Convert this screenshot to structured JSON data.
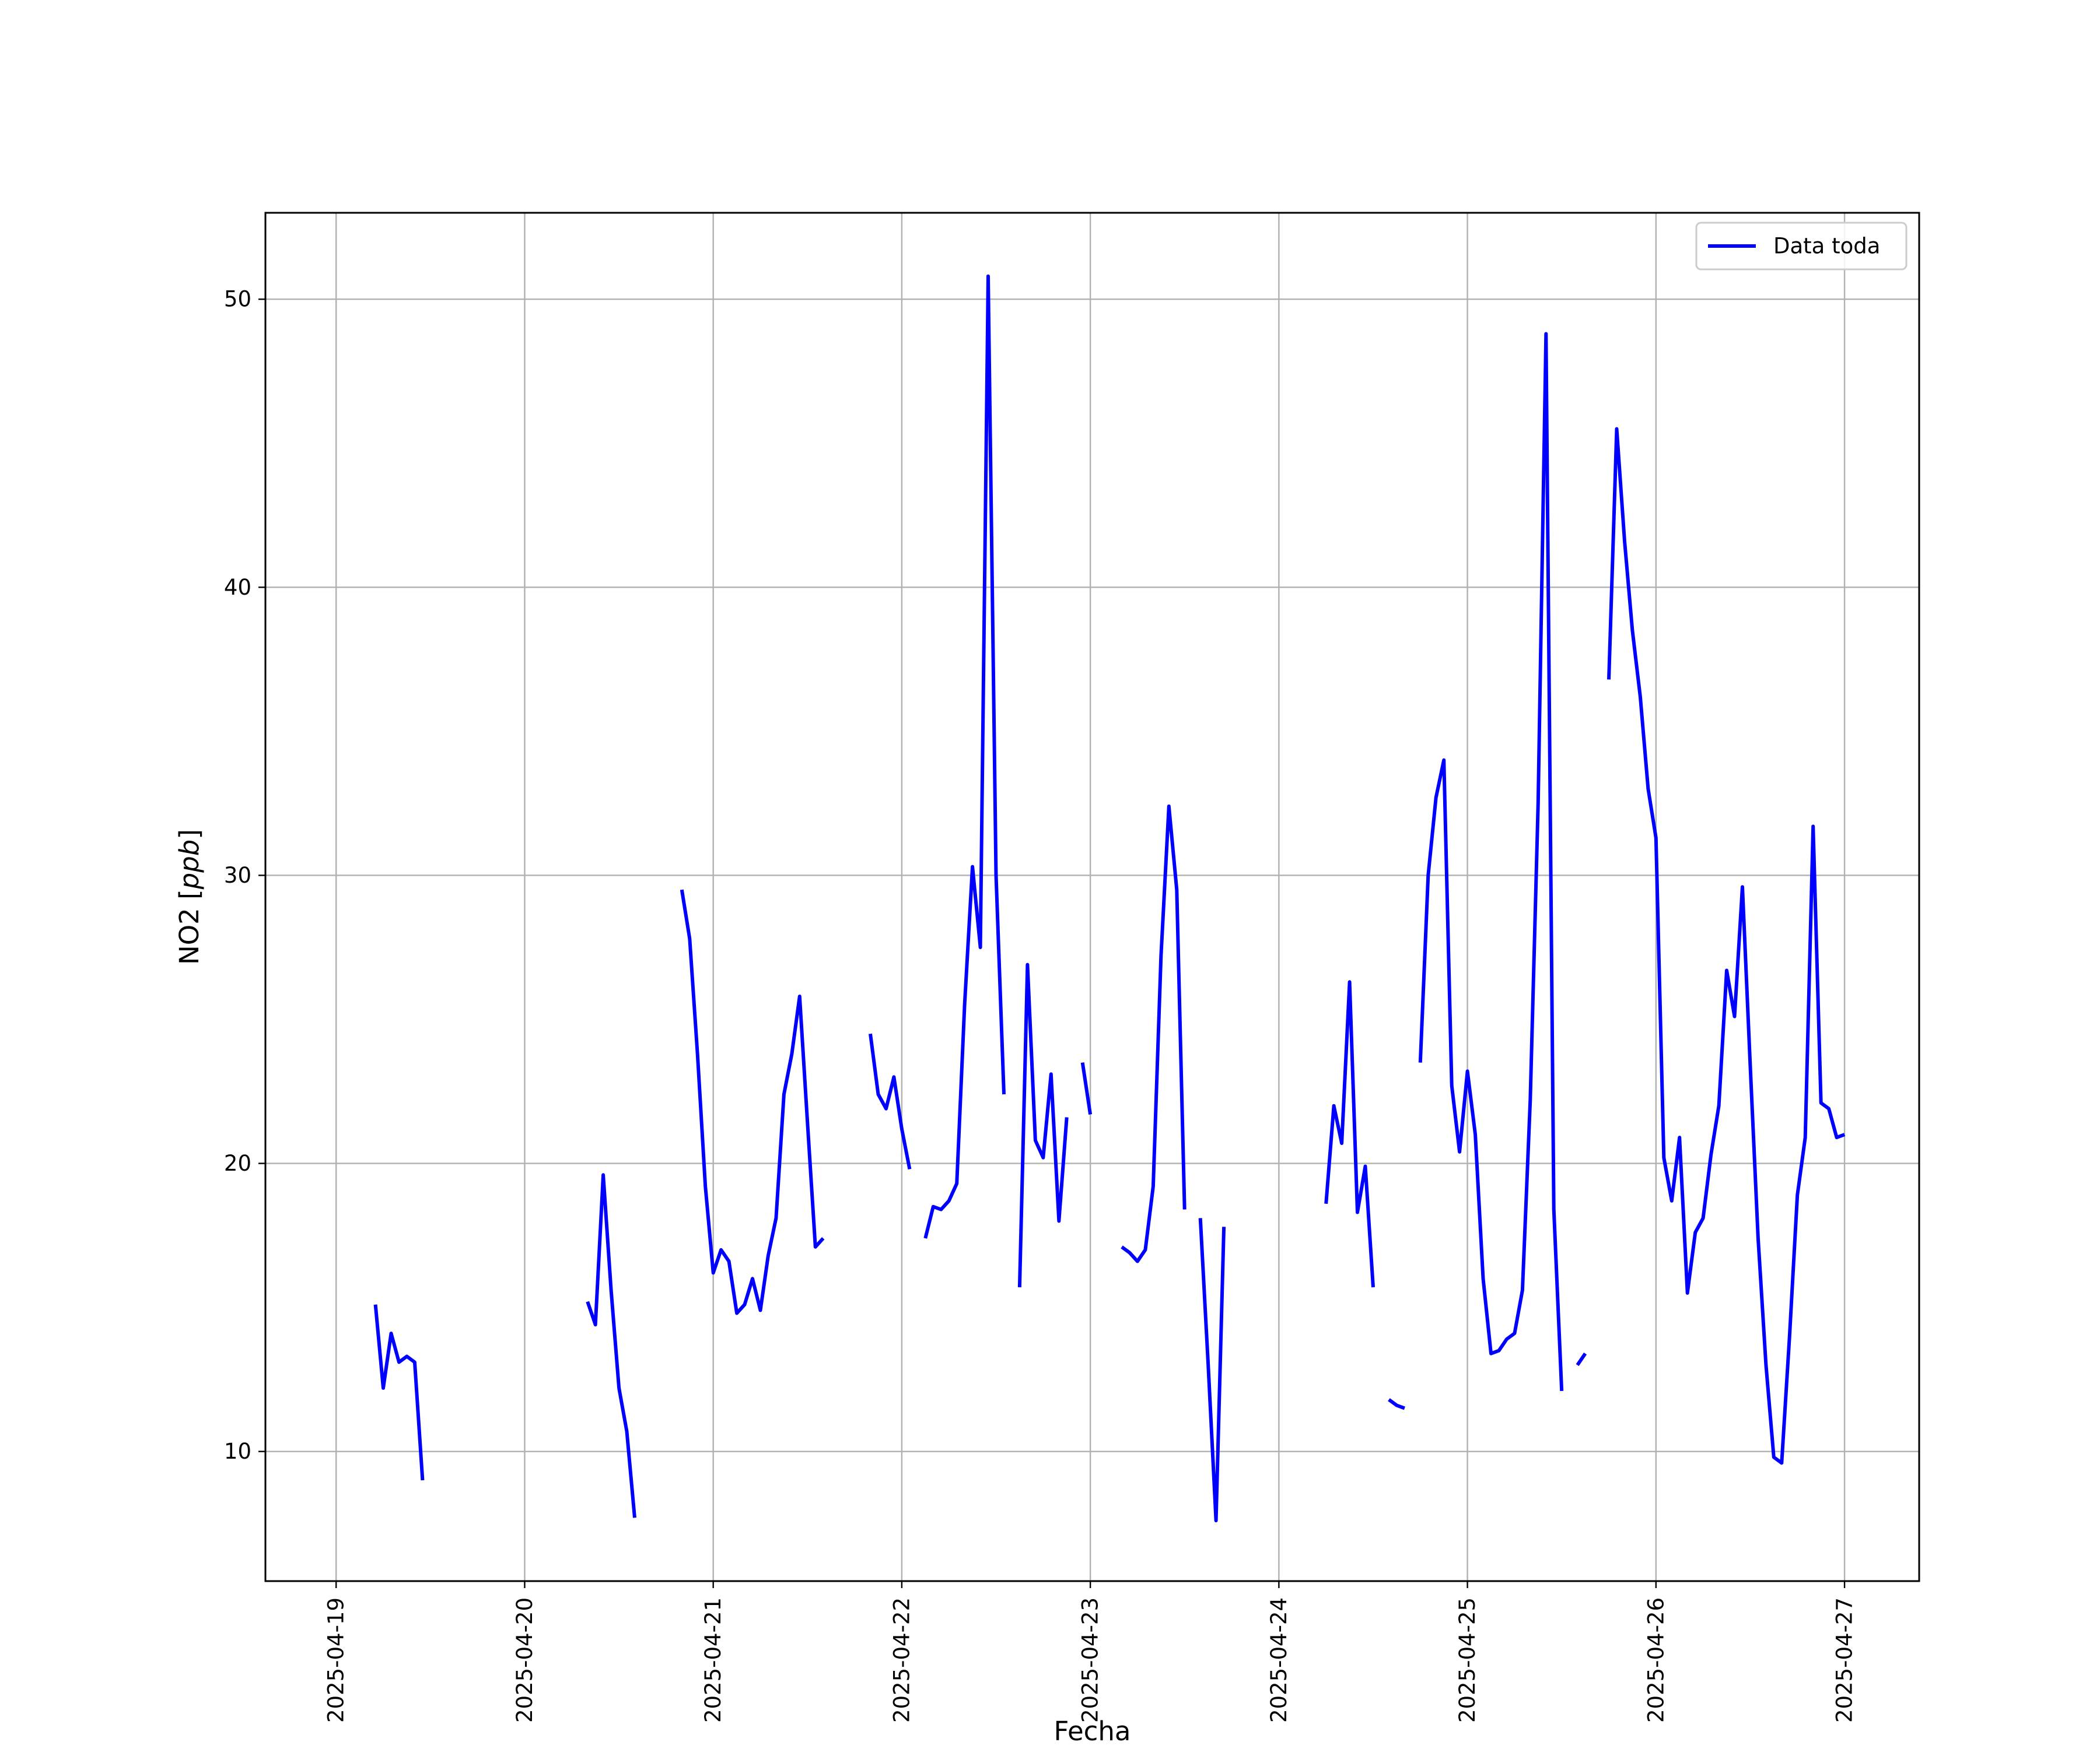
{
  "chart_data": {
    "type": "line",
    "title": "",
    "xlabel": "Fecha",
    "ylabel_prefix": "NO2 [",
    "ylabel_unit": "ppb",
    "ylabel_suffix": "]",
    "x_type": "date",
    "xlim": [
      "2025-04-18T15:00",
      "2025-04-27T09:30"
    ],
    "ylim": [
      5.5,
      53
    ],
    "x_ticks": [
      "2025-04-19",
      "2025-04-20",
      "2025-04-21",
      "2025-04-22",
      "2025-04-23",
      "2025-04-24",
      "2025-04-25",
      "2025-04-26",
      "2025-04-27"
    ],
    "y_ticks": [
      "10",
      "20",
      "30",
      "40",
      "50"
    ],
    "grid": true,
    "legend_position": "top-right",
    "line_color": "#0000ff",
    "series": [
      {
        "name": "Data toda",
        "segments": [
          [
            [
              "2025-04-19T05:00",
              15.1
            ],
            [
              "2025-04-19T06:00",
              12.2
            ],
            [
              "2025-04-19T07:00",
              14.1
            ],
            [
              "2025-04-19T08:00",
              13.1
            ],
            [
              "2025-04-19T09:00",
              13.3
            ],
            [
              "2025-04-19T10:00",
              13.1
            ],
            [
              "2025-04-19T11:00",
              9.0
            ]
          ],
          [
            [
              "2025-04-20T08:00",
              15.2
            ],
            [
              "2025-04-20T09:00",
              14.4
            ],
            [
              "2025-04-20T10:00",
              19.6
            ],
            [
              "2025-04-20T11:00",
              15.6
            ],
            [
              "2025-04-20T12:00",
              12.2
            ],
            [
              "2025-04-20T13:00",
              10.7
            ],
            [
              "2025-04-20T14:00",
              7.7
            ]
          ],
          [
            [
              "2025-04-20T20:00",
              29.5
            ],
            [
              "2025-04-20T21:00",
              27.8
            ],
            [
              "2025-04-20T22:00",
              23.8
            ],
            [
              "2025-04-20T23:00",
              19.2
            ],
            [
              "2025-04-21T00:00",
              16.2
            ],
            [
              "2025-04-21T01:00",
              17.0
            ],
            [
              "2025-04-21T02:00",
              16.6
            ],
            [
              "2025-04-21T03:00",
              14.8
            ],
            [
              "2025-04-21T04:00",
              15.1
            ],
            [
              "2025-04-21T05:00",
              16.0
            ],
            [
              "2025-04-21T06:00",
              14.9
            ],
            [
              "2025-04-21T07:00",
              16.8
            ],
            [
              "2025-04-21T08:00",
              18.1
            ],
            [
              "2025-04-21T09:00",
              22.4
            ],
            [
              "2025-04-21T10:00",
              23.8
            ],
            [
              "2025-04-21T11:00",
              25.8
            ],
            [
              "2025-04-21T12:00",
              21.4
            ],
            [
              "2025-04-21T13:00",
              17.1
            ],
            [
              "2025-04-21T14:00",
              17.4
            ]
          ],
          [
            [
              "2025-04-21T20:00",
              24.5
            ],
            [
              "2025-04-21T21:00",
              22.4
            ],
            [
              "2025-04-21T22:00",
              21.9
            ],
            [
              "2025-04-21T23:00",
              23.0
            ],
            [
              "2025-04-22T00:00",
              21.2
            ],
            [
              "2025-04-22T01:00",
              19.8
            ]
          ],
          [
            [
              "2025-04-22T03:00",
              17.4
            ],
            [
              "2025-04-22T04:00",
              18.5
            ],
            [
              "2025-04-22T05:00",
              18.4
            ],
            [
              "2025-04-22T06:00",
              18.7
            ],
            [
              "2025-04-22T07:00",
              19.3
            ],
            [
              "2025-04-22T08:00",
              25.5
            ],
            [
              "2025-04-22T09:00",
              30.3
            ],
            [
              "2025-04-22T10:00",
              27.5
            ],
            [
              "2025-04-22T11:00",
              50.8
            ],
            [
              "2025-04-22T12:00",
              30.0
            ],
            [
              "2025-04-22T13:00",
              22.4
            ]
          ],
          [
            [
              "2025-04-22T15:00",
              15.7
            ],
            [
              "2025-04-22T16:00",
              26.9
            ],
            [
              "2025-04-22T17:00",
              20.8
            ],
            [
              "2025-04-22T18:00",
              20.2
            ],
            [
              "2025-04-22T19:00",
              23.1
            ],
            [
              "2025-04-22T20:00",
              18.0
            ],
            [
              "2025-04-22T21:00",
              21.6
            ]
          ],
          [
            [
              "2025-04-22T23:00",
              23.5
            ],
            [
              "2025-04-23T00:00",
              21.7
            ]
          ],
          [
            [
              "2025-04-23T04:00",
              17.1
            ],
            [
              "2025-04-23T05:00",
              16.9
            ],
            [
              "2025-04-23T06:00",
              16.6
            ],
            [
              "2025-04-23T07:00",
              17.0
            ],
            [
              "2025-04-23T08:00",
              19.2
            ],
            [
              "2025-04-23T09:00",
              27.2
            ],
            [
              "2025-04-23T10:00",
              32.4
            ],
            [
              "2025-04-23T11:00",
              29.5
            ],
            [
              "2025-04-23T12:00",
              18.4
            ]
          ],
          [
            [
              "2025-04-23T14:00",
              18.1
            ],
            [
              "2025-04-23T15:00",
              13.0
            ],
            [
              "2025-04-23T16:00",
              7.6
            ],
            [
              "2025-04-23T17:00",
              17.8
            ]
          ],
          [
            [
              "2025-04-24T06:00",
              18.6
            ],
            [
              "2025-04-24T07:00",
              22.0
            ],
            [
              "2025-04-24T08:00",
              20.7
            ],
            [
              "2025-04-24T09:00",
              26.3
            ],
            [
              "2025-04-24T10:00",
              18.3
            ],
            [
              "2025-04-24T11:00",
              19.9
            ],
            [
              "2025-04-24T12:00",
              15.7
            ]
          ],
          [
            [
              "2025-04-24T14:00",
              11.8
            ],
            [
              "2025-04-24T15:00",
              11.6
            ],
            [
              "2025-04-24T16:00",
              11.5
            ]
          ],
          [
            [
              "2025-04-24T18:00",
              23.5
            ],
            [
              "2025-04-24T19:00",
              30.0
            ],
            [
              "2025-04-24T20:00",
              32.7
            ],
            [
              "2025-04-24T21:00",
              34.0
            ],
            [
              "2025-04-24T22:00",
              22.7
            ],
            [
              "2025-04-24T23:00",
              20.4
            ],
            [
              "2025-04-25T00:00",
              23.2
            ],
            [
              "2025-04-25T01:00",
              21.0
            ],
            [
              "2025-04-25T02:00",
              16.0
            ],
            [
              "2025-04-25T03:00",
              13.4
            ],
            [
              "2025-04-25T04:00",
              13.5
            ],
            [
              "2025-04-25T05:00",
              13.9
            ],
            [
              "2025-04-25T06:00",
              14.1
            ],
            [
              "2025-04-25T07:00",
              15.6
            ],
            [
              "2025-04-25T08:00",
              22.2
            ],
            [
              "2025-04-25T09:00",
              32.5
            ],
            [
              "2025-04-25T10:00",
              48.8
            ],
            [
              "2025-04-25T11:00",
              18.4
            ],
            [
              "2025-04-25T12:00",
              12.1
            ]
          ],
          [
            [
              "2025-04-25T14:00",
              13.0
            ],
            [
              "2025-04-25T15:00",
              13.4
            ]
          ],
          [
            [
              "2025-04-25T18:00",
              36.8
            ],
            [
              "2025-04-25T19:00",
              45.5
            ],
            [
              "2025-04-25T20:00",
              41.6
            ],
            [
              "2025-04-25T21:00",
              38.5
            ],
            [
              "2025-04-25T22:00",
              36.2
            ],
            [
              "2025-04-25T23:00",
              33.0
            ],
            [
              "2025-04-26T00:00",
              31.3
            ],
            [
              "2025-04-26T01:00",
              20.2
            ],
            [
              "2025-04-26T02:00",
              18.7
            ],
            [
              "2025-04-26T03:00",
              20.9
            ],
            [
              "2025-04-26T04:00",
              15.5
            ],
            [
              "2025-04-26T05:00",
              17.6
            ],
            [
              "2025-04-26T06:00",
              18.1
            ],
            [
              "2025-04-26T07:00",
              20.3
            ],
            [
              "2025-04-26T08:00",
              22.0
            ],
            [
              "2025-04-26T09:00",
              26.7
            ],
            [
              "2025-04-26T10:00",
              25.1
            ],
            [
              "2025-04-26T11:00",
              29.6
            ],
            [
              "2025-04-26T12:00",
              23.4
            ],
            [
              "2025-04-26T13:00",
              17.4
            ],
            [
              "2025-04-26T14:00",
              13.0
            ],
            [
              "2025-04-26T15:00",
              9.8
            ],
            [
              "2025-04-26T16:00",
              9.6
            ],
            [
              "2025-04-26T17:00",
              14.0
            ],
            [
              "2025-04-26T18:00",
              18.9
            ],
            [
              "2025-04-26T19:00",
              20.9
            ],
            [
              "2025-04-26T20:00",
              31.7
            ],
            [
              "2025-04-26T21:00",
              22.1
            ],
            [
              "2025-04-26T22:00",
              21.9
            ],
            [
              "2025-04-26T23:00",
              20.9
            ],
            [
              "2025-04-27T00:00",
              21.0
            ]
          ]
        ]
      }
    ]
  }
}
